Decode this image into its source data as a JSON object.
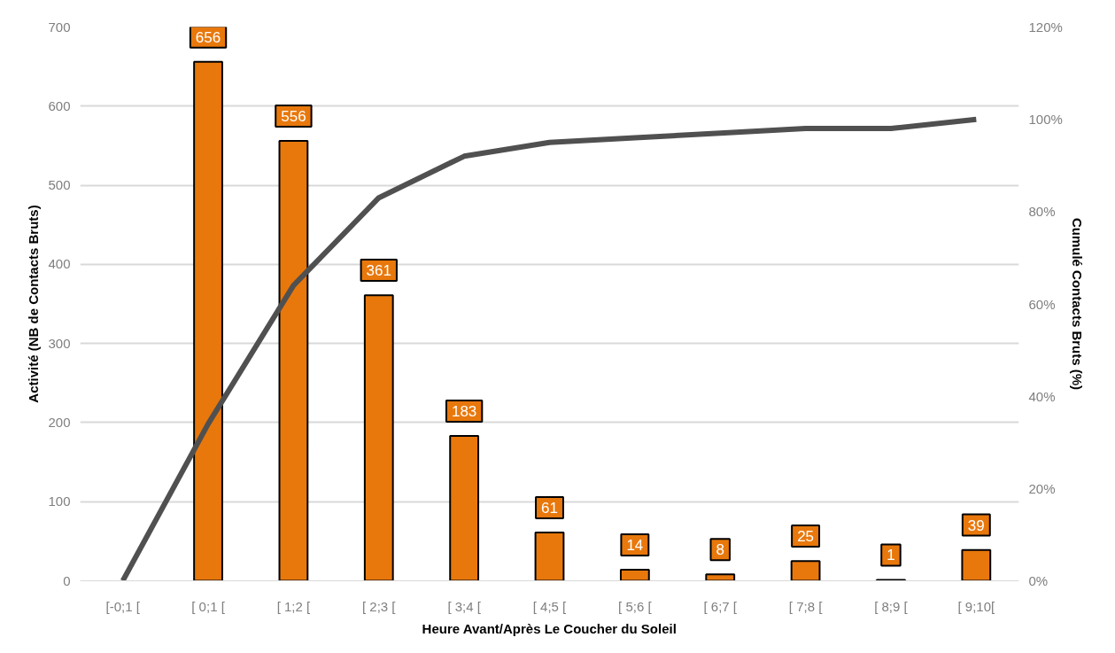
{
  "chart_data": {
    "type": "bar",
    "xlabel": "Heure Avant/Après Le Coucher du Soleil",
    "ylabel": "Activité (NB de Contacts Bruts)",
    "y2label": "Cumulé Contacts Bruts (%)",
    "categories": [
      "[-0;1 [",
      "[ 0;1 [",
      "[ 1;2 [",
      "[ 2;3 [",
      "[ 3;4 [",
      "[ 4;5 [",
      "[ 5;6 [",
      "[ 6;7 [",
      "[ 7;8 [",
      "[ 8;9 [",
      "[ 9;10["
    ],
    "series": [
      {
        "color": "#e8780c",
        "values": [
          null,
          656,
          556,
          361,
          183,
          61,
          14,
          8,
          25,
          1,
          39
        ],
        "data_labels": true
      },
      {
        "type": "line",
        "axis": "y2",
        "color": "#505050",
        "values": [
          0,
          34,
          64,
          83,
          92,
          95,
          96,
          97,
          98,
          98,
          100
        ]
      }
    ],
    "ylim": [
      0,
      700
    ],
    "yticks": [
      0,
      100,
      200,
      300,
      400,
      500,
      600,
      700
    ],
    "y2lim": [
      0,
      120
    ],
    "y2ticks": [
      {
        "value": 0,
        "label": "0%"
      },
      {
        "value": 20,
        "label": "20%"
      },
      {
        "value": 40,
        "label": "40%"
      },
      {
        "value": 60,
        "label": "60%"
      },
      {
        "value": 80,
        "label": "80%"
      },
      {
        "value": 100,
        "label": "100%"
      },
      {
        "value": 120,
        "label": "120%"
      }
    ],
    "grid": "y",
    "marker": "none",
    "line_style": "solid"
  }
}
